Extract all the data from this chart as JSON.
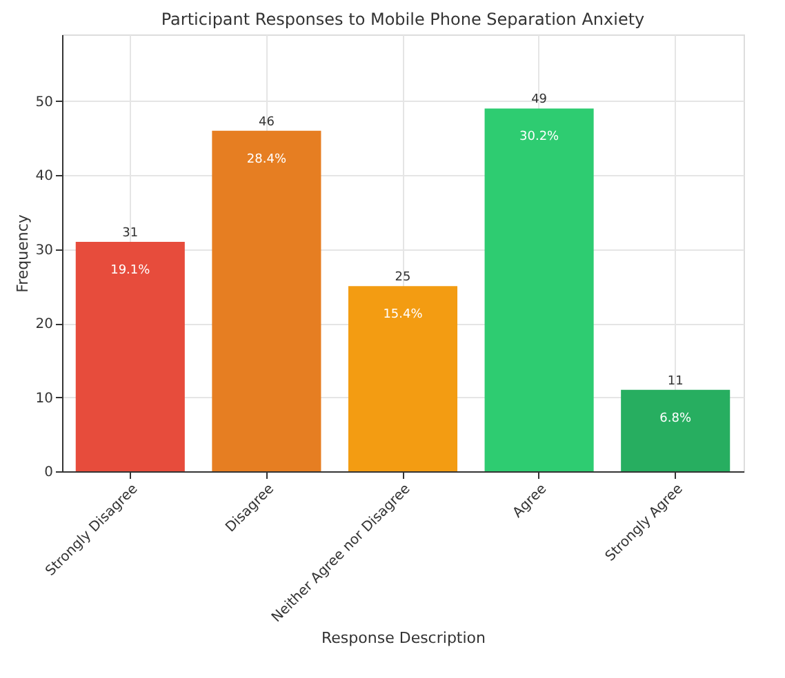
{
  "chart_data": {
    "type": "bar",
    "title": "Participant Responses to Mobile Phone Separation Anxiety",
    "xlabel": "Response Description",
    "ylabel": "Frequency",
    "categories": [
      "Strongly Disagree",
      "Disagree",
      "Neither Agree nor Disagree",
      "Agree",
      "Strongly Agree"
    ],
    "values": [
      31,
      46,
      25,
      49,
      11
    ],
    "colors": [
      "#e74c3c",
      "#e67e22",
      "#f39c12",
      "#2ecc71",
      "#27ae60"
    ],
    "ylim": [
      0,
      59
    ],
    "yticks": [
      0,
      10,
      20,
      30,
      40,
      50
    ],
    "grid": true,
    "data_labels": true,
    "annotations": [
      {
        "text": "19.1%",
        "x": "Strongly Disagree",
        "y": 31
      },
      {
        "text": "28.4%",
        "x": "Disagree",
        "y": 46
      },
      {
        "text": "15.4%",
        "x": "Neither Agree nor Disagree",
        "y": 25
      },
      {
        "text": "30.2%",
        "x": "Agree",
        "y": 49
      },
      {
        "text": "6.8%",
        "x": "Strongly Agree",
        "y": 11
      }
    ]
  }
}
